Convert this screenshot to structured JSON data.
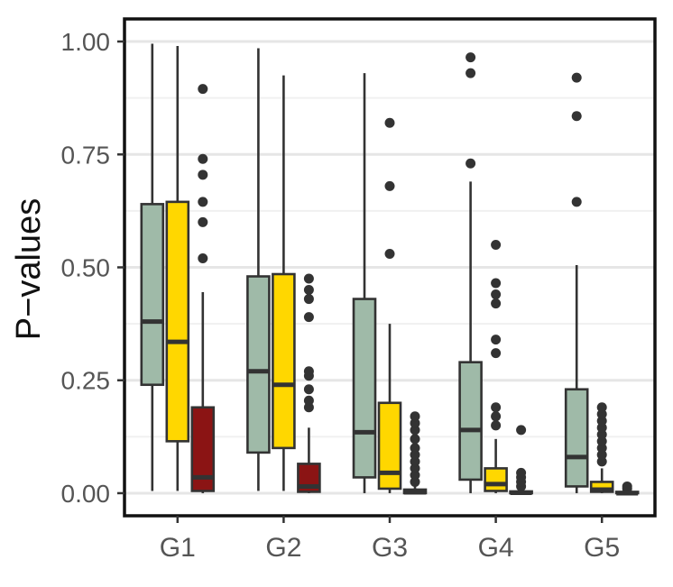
{
  "chart_data": {
    "type": "boxplot",
    "title": "",
    "xlabel": "",
    "ylabel": "P−values",
    "ylim": [
      -0.05,
      1.05
    ],
    "yticks": [
      0.0,
      0.25,
      0.5,
      0.75,
      1.0
    ],
    "ytick_labels": [
      "0.00",
      "0.25",
      "0.50",
      "0.75",
      "1.00"
    ],
    "grid": true,
    "legend": "none",
    "categories": [
      "G1",
      "G2",
      "G3",
      "G4",
      "G5"
    ],
    "series": [
      {
        "color": "#9fbaa8",
        "boxes": [
          {
            "category": "G1",
            "whisker_low": 0.005,
            "q1": 0.24,
            "median": 0.38,
            "q3": 0.64,
            "whisker_high": 0.995,
            "outliers": []
          },
          {
            "category": "G2",
            "whisker_low": 0.005,
            "q1": 0.09,
            "median": 0.27,
            "q3": 0.48,
            "whisker_high": 0.985,
            "outliers": []
          },
          {
            "category": "G3",
            "whisker_low": 0.0,
            "q1": 0.035,
            "median": 0.135,
            "q3": 0.43,
            "whisker_high": 0.93,
            "outliers": []
          },
          {
            "category": "G4",
            "whisker_low": 0.0,
            "q1": 0.03,
            "median": 0.14,
            "q3": 0.29,
            "whisker_high": 0.69,
            "outliers": [
              0.73,
              0.93,
              0.965
            ]
          },
          {
            "category": "G5",
            "whisker_low": 0.0,
            "q1": 0.015,
            "median": 0.08,
            "q3": 0.23,
            "whisker_high": 0.505,
            "outliers": [
              0.645,
              0.835,
              0.92
            ]
          }
        ]
      },
      {
        "color": "#ffd700",
        "boxes": [
          {
            "category": "G1",
            "whisker_low": 0.005,
            "q1": 0.115,
            "median": 0.335,
            "q3": 0.645,
            "whisker_high": 0.99,
            "outliers": []
          },
          {
            "category": "G2",
            "whisker_low": 0.005,
            "q1": 0.1,
            "median": 0.24,
            "q3": 0.485,
            "whisker_high": 0.925,
            "outliers": []
          },
          {
            "category": "G3",
            "whisker_low": 0.0,
            "q1": 0.01,
            "median": 0.045,
            "q3": 0.2,
            "whisker_high": 0.375,
            "outliers": [
              0.53,
              0.68,
              0.82
            ]
          },
          {
            "category": "G4",
            "whisker_low": 0.0,
            "q1": 0.005,
            "median": 0.02,
            "q3": 0.055,
            "whisker_high": 0.12,
            "outliers": [
              0.15,
              0.17,
              0.19,
              0.31,
              0.34,
              0.42,
              0.44,
              0.465,
              0.55
            ]
          },
          {
            "category": "G5",
            "whisker_low": 0.0,
            "q1": 0.003,
            "median": 0.008,
            "q3": 0.025,
            "whisker_high": 0.055,
            "outliers": [
              0.07,
              0.085,
              0.1,
              0.115,
              0.13,
              0.145,
              0.16,
              0.175,
              0.19
            ]
          }
        ]
      },
      {
        "color": "#8b1414",
        "boxes": [
          {
            "category": "G1",
            "whisker_low": 0.0,
            "q1": 0.005,
            "median": 0.035,
            "q3": 0.19,
            "whisker_high": 0.445,
            "outliers": [
              0.52,
              0.6,
              0.645,
              0.705,
              0.74,
              0.895
            ]
          },
          {
            "category": "G2",
            "whisker_low": 0.0,
            "q1": 0.003,
            "median": 0.015,
            "q3": 0.065,
            "whisker_high": 0.145,
            "outliers": [
              0.19,
              0.205,
              0.23,
              0.26,
              0.27,
              0.39,
              0.43,
              0.45,
              0.475
            ]
          },
          {
            "category": "G3",
            "whisker_low": 0.0,
            "q1": 0.0,
            "median": 0.002,
            "q3": 0.008,
            "whisker_high": 0.018,
            "outliers": [
              0.025,
              0.04,
              0.055,
              0.07,
              0.085,
              0.1,
              0.12,
              0.14,
              0.155,
              0.17
            ]
          },
          {
            "category": "G4",
            "whisker_low": 0.0,
            "q1": 0.0,
            "median": 0.001,
            "q3": 0.004,
            "whisker_high": 0.008,
            "outliers": [
              0.015,
              0.025,
              0.035,
              0.045,
              0.14
            ]
          },
          {
            "category": "G5",
            "whisker_low": 0.0,
            "q1": 0.0,
            "median": 0.0,
            "q3": 0.003,
            "whisker_high": 0.006,
            "outliers": [
              0.01,
              0.015
            ]
          }
        ]
      }
    ]
  }
}
